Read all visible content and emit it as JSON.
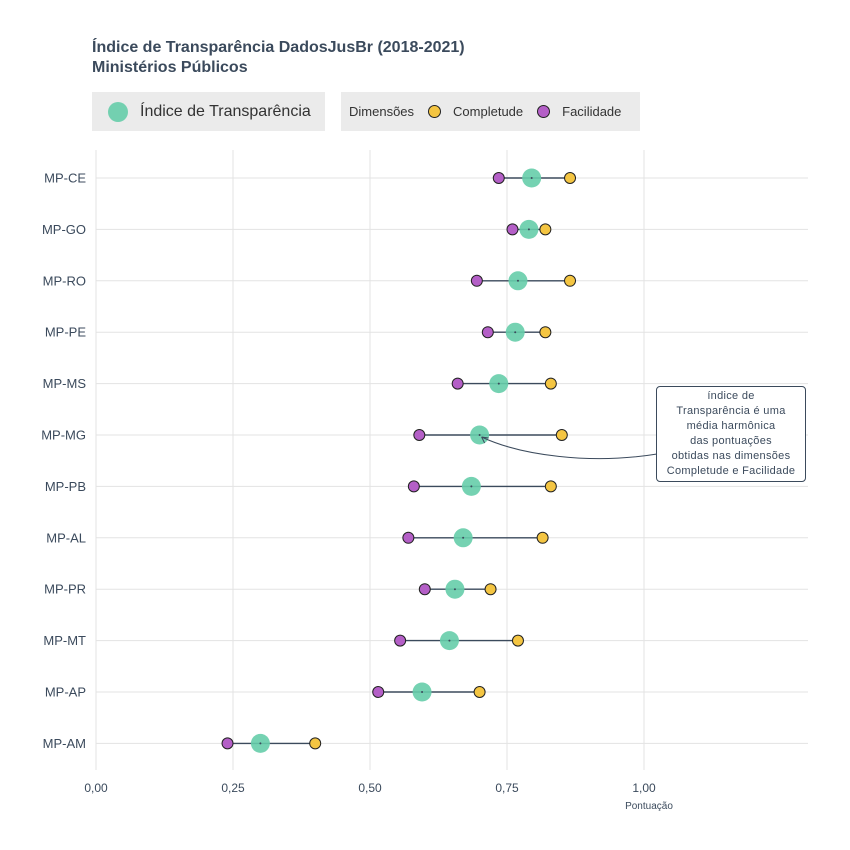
{
  "title": "Índice de Transparência DadosJusBr (2018-2021)",
  "subtitle": "Ministérios Públicos",
  "legend": {
    "index_label": "Índice de Transparência",
    "dimensions_title": "Dimensões",
    "completeness_label": "Completude",
    "ease_label": "Facilidade"
  },
  "annotation": {
    "lines": [
      "índice de",
      "Transparência é uma",
      "média harmônica",
      "das pontuações",
      "obtidas nas dimensões",
      "Completude e Facilidade"
    ]
  },
  "colors": {
    "index": "#66cdaa",
    "completeness": "#f4c542",
    "ease": "#b45fc7",
    "segment": "#3b4a5c",
    "grid": "#e3e3e3",
    "text": "#3b4a5c"
  },
  "chart_data": {
    "type": "scatter",
    "xlabel": "Pontuação",
    "ylabel": "",
    "xlim": [
      0,
      1.25
    ],
    "x_ticks": [
      "0,00",
      "0,25",
      "0,50",
      "0,75",
      "1,00"
    ],
    "x_tick_values": [
      0,
      0.25,
      0.5,
      0.75,
      1.0
    ],
    "grid": true,
    "legend_position": "top-left",
    "categories": [
      "MP-CE",
      "MP-GO",
      "MP-RO",
      "MP-PE",
      "MP-MS",
      "MP-MG",
      "MP-PB",
      "MP-AL",
      "MP-PR",
      "MP-MT",
      "MP-AP",
      "MP-AM"
    ],
    "series": [
      {
        "name": "Índice de Transparência",
        "values": [
          0.795,
          0.79,
          0.77,
          0.765,
          0.735,
          0.7,
          0.685,
          0.67,
          0.655,
          0.645,
          0.595,
          0.3
        ]
      },
      {
        "name": "Completude",
        "values": [
          0.865,
          0.82,
          0.865,
          0.82,
          0.83,
          0.85,
          0.83,
          0.815,
          0.72,
          0.77,
          0.7,
          0.4
        ]
      },
      {
        "name": "Facilidade",
        "values": [
          0.735,
          0.76,
          0.695,
          0.715,
          0.66,
          0.59,
          0.58,
          0.57,
          0.6,
          0.555,
          0.515,
          0.24
        ]
      }
    ]
  }
}
